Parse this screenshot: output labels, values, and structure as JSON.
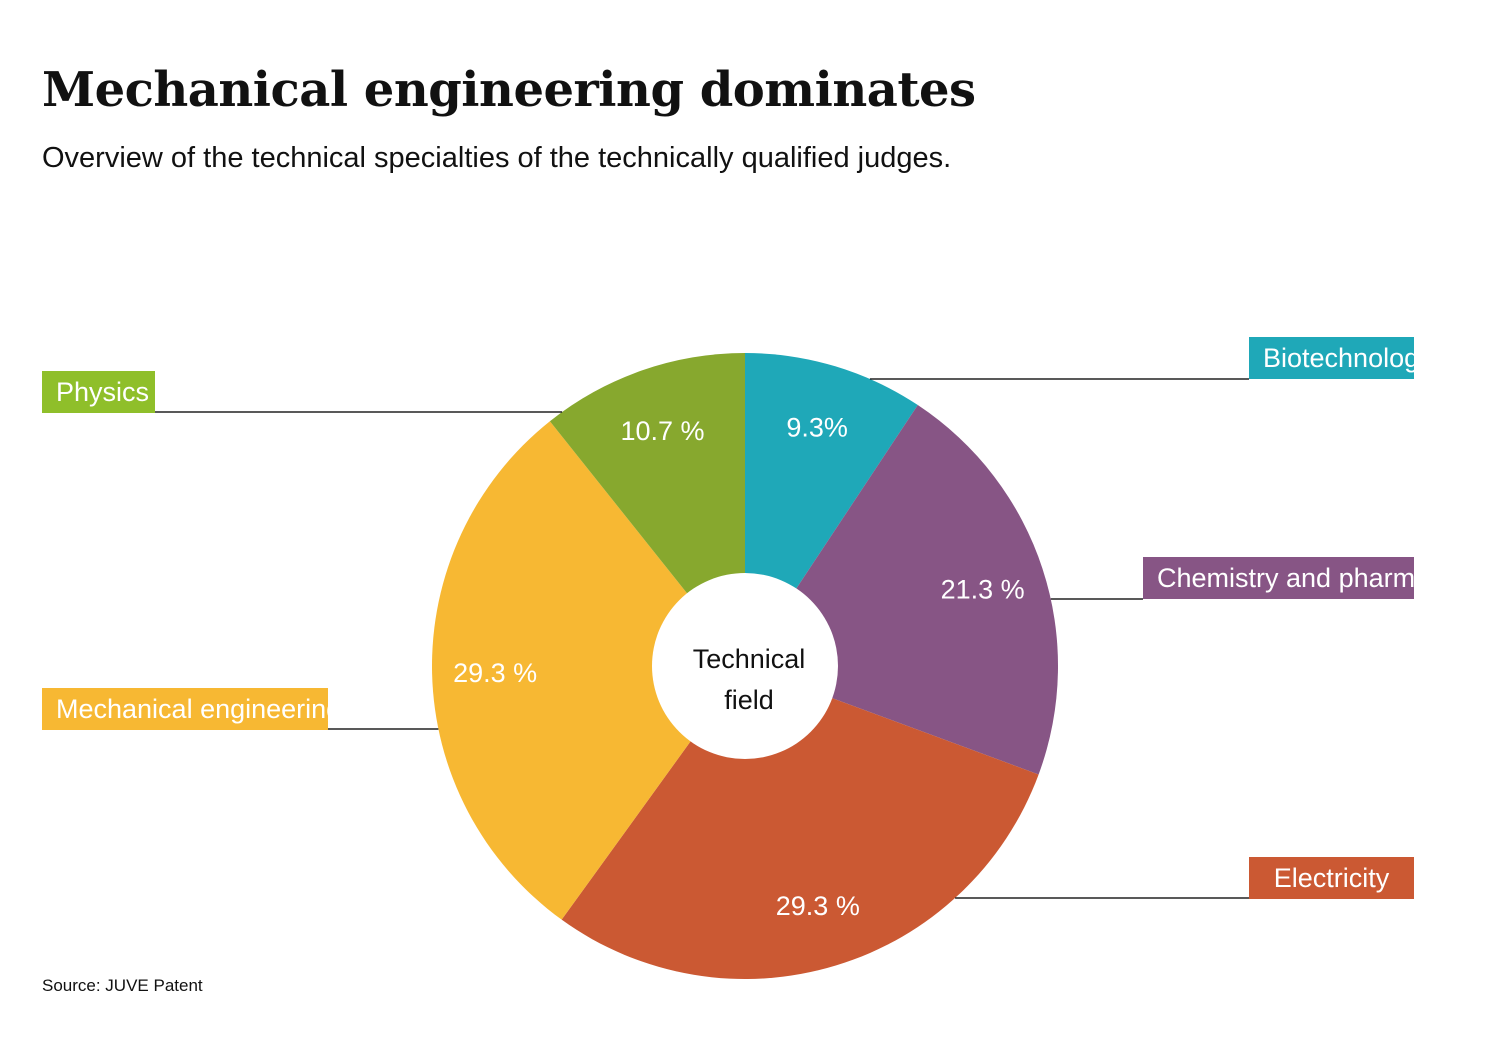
{
  "title": "Mechanical engineering dominates",
  "subtitle": "Overview of the technical specialties of the technically qualified judges.",
  "source": "Source: JUVE Patent",
  "chart_data": {
    "type": "pie",
    "title": "Mechanical engineering dominates",
    "subtitle": "Overview of the technical specialties of the technically qualified judges.",
    "center_label": [
      "Technical",
      "field"
    ],
    "legend_placement": "callouts",
    "slices": [
      {
        "name": "Biotechnology",
        "value": 9.3,
        "label": "9.3%",
        "color": "#1fa8b8"
      },
      {
        "name": "Chemistry and pharma",
        "value": 21.3,
        "label": "21.3 %",
        "color": "#875585"
      },
      {
        "name": "Electricity",
        "value": 29.3,
        "label": "29.3 %",
        "color": "#cb5933"
      },
      {
        "name": "Mechanical engineering",
        "value": 29.3,
        "label": "29.3 %",
        "color": "#f7b833"
      },
      {
        "name": "Physics",
        "value": 10.7,
        "label": "10.7 %",
        "color": "#87a82e"
      }
    ],
    "legend_colors": {
      "Biotechnology": "#1fa8b8",
      "Chemistry and pharma": "#875585",
      "Electricity": "#cb5933",
      "Mechanical engineering": "#f7b833",
      "Physics": "#8fbf2a"
    }
  }
}
